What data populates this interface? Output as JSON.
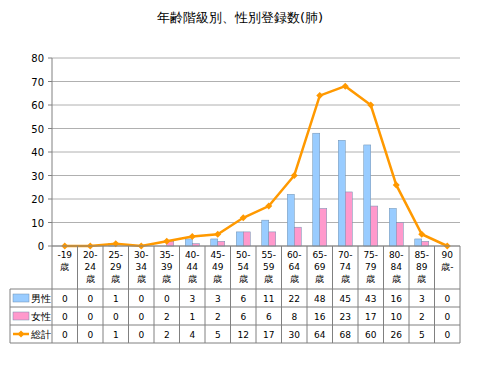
{
  "chart_data": {
    "type": "bar",
    "title": "年齢階級別、性別登録数(肺)",
    "categories": [
      "-19歳",
      "20-24歳",
      "25-29歳",
      "30-34歳",
      "35-39歳",
      "40-44歳",
      "45-49歳",
      "50-54歳",
      "55-59歳",
      "60-64歳",
      "65-69歳",
      "70-74歳",
      "75-79歳",
      "80-84歳",
      "85-89歳",
      "90歳-"
    ],
    "series": [
      {
        "name": "男性",
        "type": "bar",
        "color": "#99ccff",
        "values": [
          0,
          0,
          1,
          0,
          0,
          3,
          3,
          6,
          11,
          22,
          48,
          45,
          43,
          16,
          3,
          0
        ]
      },
      {
        "name": "女性",
        "type": "bar",
        "color": "#ff99cc",
        "values": [
          0,
          0,
          0,
          0,
          2,
          1,
          2,
          6,
          6,
          8,
          16,
          23,
          17,
          10,
          2,
          0
        ]
      },
      {
        "name": "総計",
        "type": "line",
        "color": "#ff9900",
        "marker": "diamond",
        "values": [
          0,
          0,
          1,
          0,
          2,
          4,
          5,
          12,
          17,
          30,
          64,
          68,
          60,
          26,
          5,
          0
        ]
      }
    ],
    "ylim": [
      0,
      80
    ],
    "yticks": [
      0,
      10,
      20,
      30,
      40,
      50,
      60,
      70,
      80
    ],
    "grid": true
  }
}
